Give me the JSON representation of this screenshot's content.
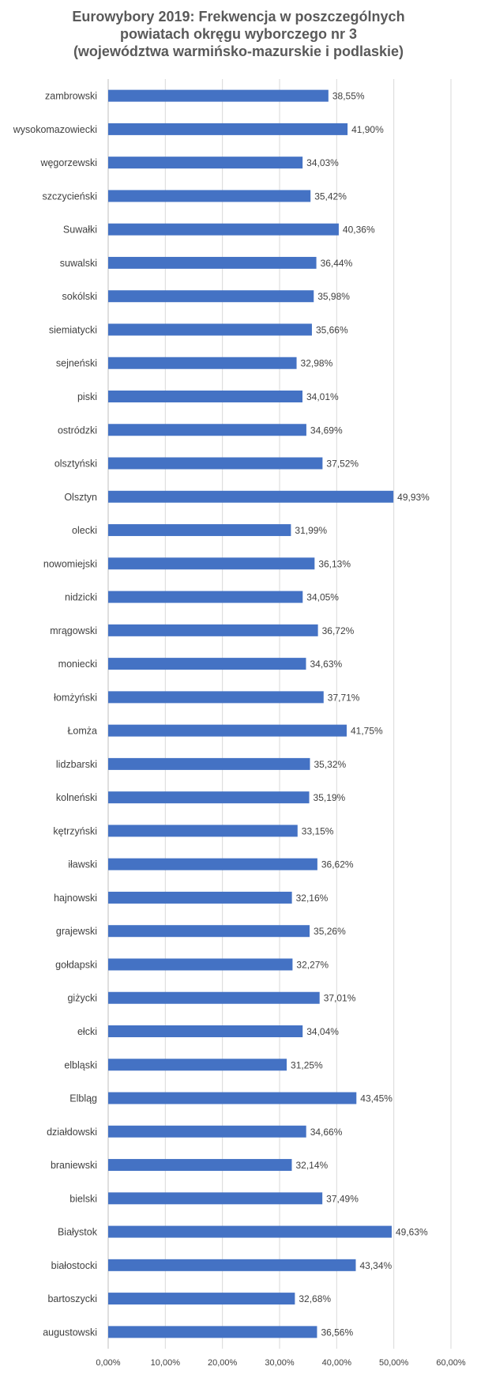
{
  "chart_data": {
    "type": "bar",
    "orientation": "horizontal",
    "title_lines": [
      "Eurowybory 2019: Frekwencja w poszczególnych",
      "powiatach okręgu wyborczego nr 3",
      "(województwa warmińsko-mazurskie i podlaskie)"
    ],
    "categories": [
      "zambrowski",
      "wysokomazowiecki",
      "węgorzewski",
      "szczycieński",
      "Suwałki",
      "suwalski",
      "sokólski",
      "siemiatycki",
      "sejneński",
      "piski",
      "ostródzki",
      "olsztyński",
      "Olsztyn",
      "olecki",
      "nowomiejski",
      "nidzicki",
      "mrągowski",
      "moniecki",
      "łomżyński",
      "Łomża",
      "lidzbarski",
      "kolneński",
      "kętrzyński",
      "iławski",
      "hajnowski",
      "grajewski",
      "gołdapski",
      "giżycki",
      "ełcki",
      "elbląski",
      "Elbląg",
      "działdowski",
      "braniewski",
      "bielski",
      "Białystok",
      "białostocki",
      "bartoszycki",
      "augustowski"
    ],
    "values": [
      38.55,
      41.9,
      34.03,
      35.42,
      40.36,
      36.44,
      35.98,
      35.66,
      32.98,
      34.01,
      34.69,
      37.52,
      49.93,
      31.99,
      36.13,
      34.05,
      36.72,
      34.63,
      37.71,
      41.75,
      35.32,
      35.19,
      33.15,
      36.62,
      32.16,
      35.26,
      32.27,
      37.01,
      34.04,
      31.25,
      43.45,
      34.66,
      32.14,
      37.49,
      49.63,
      43.34,
      32.68,
      36.56
    ],
    "value_labels": [
      "38,55%",
      "41,90%",
      "34,03%",
      "35,42%",
      "40,36%",
      "36,44%",
      "35,98%",
      "35,66%",
      "32,98%",
      "34,01%",
      "34,69%",
      "37,52%",
      "49,93%",
      "31,99%",
      "36,13%",
      "34,05%",
      "36,72%",
      "34,63%",
      "37,71%",
      "41,75%",
      "35,32%",
      "35,19%",
      "33,15%",
      "36,62%",
      "32,16%",
      "35,26%",
      "32,27%",
      "37,01%",
      "34,04%",
      "31,25%",
      "43,45%",
      "34,66%",
      "32,14%",
      "37,49%",
      "49,63%",
      "43,34%",
      "32,68%",
      "36,56%"
    ],
    "xlim": [
      0,
      60
    ],
    "x_ticks": [
      0,
      10,
      20,
      30,
      40,
      50,
      60
    ],
    "x_tick_labels": [
      "0,00%",
      "10,00%",
      "20,00%",
      "30,00%",
      "40,00%",
      "50,00%",
      "60,00%"
    ],
    "grid": true,
    "legend": "none",
    "colors": {
      "bar": "#4472C4",
      "grid": "#D9D9D9",
      "axis": "#BFBFBF",
      "text": "#404040",
      "title": "#595959"
    }
  }
}
